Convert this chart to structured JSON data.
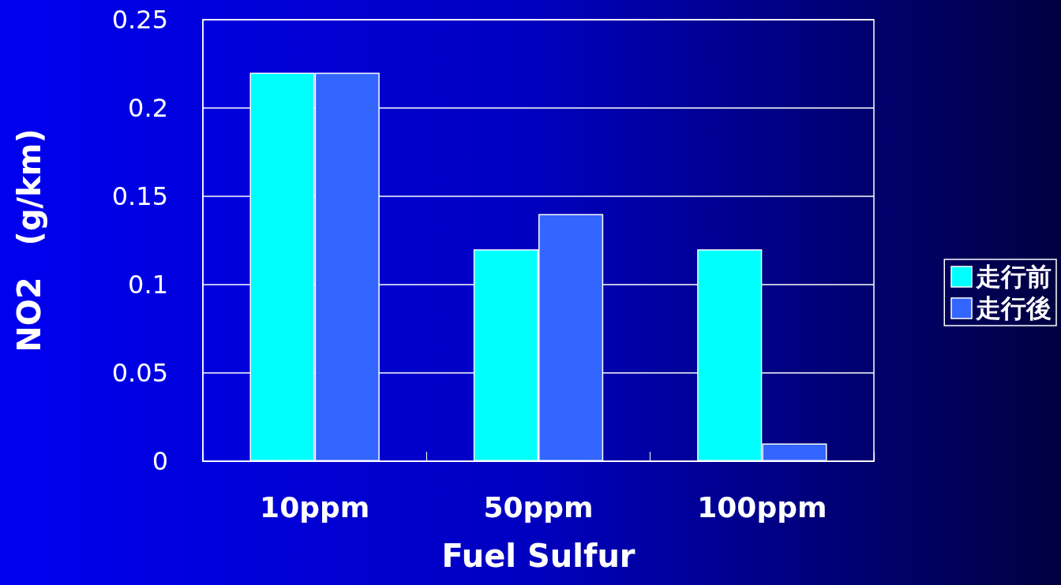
{
  "chart_data": {
    "type": "bar",
    "xlabel": "Fuel Sulfur",
    "ylabel": "NO2　(g/km)",
    "categories": [
      "10ppm",
      "50ppm",
      "100ppm"
    ],
    "series": [
      {
        "name": "走行前",
        "color": "#00ffff",
        "values": [
          0.22,
          0.12,
          0.12
        ]
      },
      {
        "name": "走行後",
        "color": "#3366ff",
        "values": [
          0.22,
          0.14,
          0.01
        ]
      }
    ],
    "ylim": [
      0,
      0.25
    ],
    "yticks": [
      0,
      0.05,
      0.1,
      0.15,
      0.2,
      0.25
    ],
    "grid": "y",
    "legend": "right"
  }
}
